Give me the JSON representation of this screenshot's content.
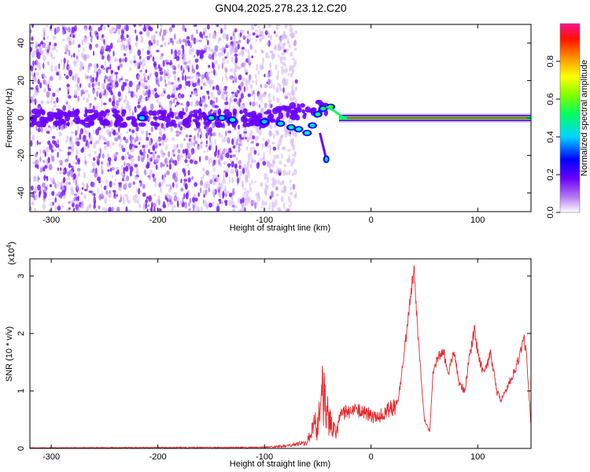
{
  "title": "GN04.2025.278.23.12.C20",
  "chart_data": [
    {
      "type": "heatmap",
      "xlabel": "Height of straight line (km)",
      "ylabel": "Frequency (Hz)",
      "xlim": [
        -320,
        150
      ],
      "ylim": [
        -50,
        50
      ],
      "x_ticks": [
        -300,
        -200,
        -100,
        0,
        100
      ],
      "y_ticks": [
        -40,
        -20,
        0,
        20,
        40
      ],
      "colorbar": {
        "label": "Normalized spectral amplitude",
        "range": [
          0,
          1
        ],
        "ticks": [
          "0.0",
          "0.2",
          "0.4",
          "0.6",
          "0.8"
        ],
        "colors": [
          "#ffffff",
          "#8a2be2",
          "#0000ff",
          "#00ffff",
          "#00ff00",
          "#ffff00",
          "#ff8000",
          "#ff0000",
          "#ff1493"
        ]
      },
      "features": {
        "noise_region_x": [
          -320,
          -80
        ],
        "signal_line_y": 0,
        "signal_line_x": [
          -30,
          150
        ],
        "signal_color": "#ff3b30",
        "branch_point": [
          -42,
          -22
        ]
      }
    },
    {
      "type": "line",
      "xlabel": "Height of straight line (km)",
      "ylabel": "SNR (10 * v/v)",
      "y_multiplier": "(x10",
      "y_multiplier_exp": "4",
      "y_multiplier_close": ")",
      "xlim": [
        -320,
        150
      ],
      "ylim": [
        0,
        3.3
      ],
      "x_ticks": [
        -300,
        -200,
        -100,
        0,
        100
      ],
      "y_ticks": [
        0,
        1,
        2,
        3
      ],
      "line_color": "#e8262a",
      "keypoints": [
        [
          -320,
          0.01
        ],
        [
          -100,
          0.02
        ],
        [
          -80,
          0.04
        ],
        [
          -60,
          0.1
        ],
        [
          -50,
          0.55
        ],
        [
          -45,
          1.6
        ],
        [
          -40,
          0.8
        ],
        [
          -35,
          0.5
        ],
        [
          -25,
          0.65
        ],
        [
          -15,
          0.7
        ],
        [
          -5,
          0.65
        ],
        [
          5,
          0.55
        ],
        [
          15,
          0.7
        ],
        [
          25,
          0.8
        ],
        [
          30,
          1.5
        ],
        [
          36,
          2.5
        ],
        [
          40,
          3.25
        ],
        [
          44,
          2.0
        ],
        [
          50,
          0.5
        ],
        [
          55,
          0.3
        ],
        [
          58,
          1.3
        ],
        [
          62,
          1.6
        ],
        [
          68,
          1.75
        ],
        [
          72,
          1.3
        ],
        [
          78,
          1.75
        ],
        [
          82,
          1.2
        ],
        [
          88,
          1.0
        ],
        [
          92,
          1.6
        ],
        [
          97,
          2.1
        ],
        [
          101,
          1.6
        ],
        [
          106,
          1.3
        ],
        [
          112,
          1.7
        ],
        [
          118,
          1.0
        ],
        [
          122,
          0.85
        ],
        [
          128,
          1.1
        ],
        [
          133,
          1.3
        ],
        [
          137,
          1.5
        ],
        [
          140,
          1.7
        ],
        [
          143,
          2.0
        ],
        [
          146,
          1.6
        ],
        [
          150,
          0.4
        ]
      ]
    }
  ]
}
